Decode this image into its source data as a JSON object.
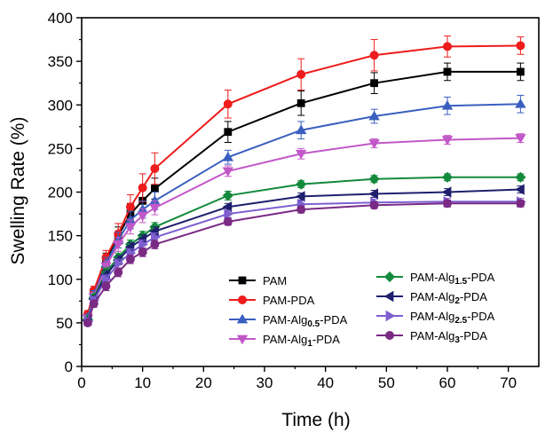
{
  "chart_data": {
    "type": "line",
    "xlabel": "Time (h)",
    "ylabel": "Swelling Rate (%)",
    "xlim": [
      0,
      75
    ],
    "ylim": [
      0,
      400
    ],
    "xticks": [
      0,
      10,
      20,
      30,
      40,
      50,
      60,
      70
    ],
    "yticks": [
      0,
      50,
      100,
      150,
      200,
      250,
      300,
      350,
      400
    ],
    "x": [
      1,
      2,
      4,
      6,
      8,
      10,
      12,
      24,
      36,
      48,
      60,
      72
    ],
    "error_bars": true,
    "legend_position": "bottom-right, two columns",
    "series": [
      {
        "name": "PAM",
        "name_parts": [
          {
            "t": "PAM",
            "sub": false
          }
        ],
        "color": "#000000",
        "marker": "square",
        "values": [
          58,
          85,
          122,
          150,
          175,
          190,
          204,
          269,
          302,
          325,
          338,
          338
        ],
        "errors": [
          4,
          5,
          8,
          10,
          12,
          12,
          12,
          12,
          14,
          12,
          10,
          10
        ]
      },
      {
        "name": "PAM-PDA",
        "name_parts": [
          {
            "t": "PAM-PDA",
            "sub": false
          }
        ],
        "color": "#ee1c1c",
        "marker": "circle",
        "values": [
          60,
          87,
          125,
          152,
          183,
          205,
          227,
          301,
          335,
          357,
          367,
          368
        ],
        "errors": [
          4,
          5,
          8,
          12,
          14,
          16,
          18,
          16,
          18,
          18,
          12,
          10
        ]
      },
      {
        "name": "PAM-Alg0.5-PDA",
        "name_parts": [
          {
            "t": "PAM-Alg",
            "sub": false
          },
          {
            "t": "0.5",
            "sub": true
          },
          {
            "t": "-PDA",
            "sub": false
          }
        ],
        "color": "#3a5fbf",
        "marker": "triangle-up",
        "values": [
          56,
          82,
          118,
          145,
          168,
          180,
          190,
          240,
          271,
          287,
          299,
          301
        ],
        "errors": [
          4,
          5,
          7,
          9,
          10,
          10,
          10,
          8,
          10,
          8,
          10,
          10
        ]
      },
      {
        "name": "PAM-Alg1-PDA",
        "name_parts": [
          {
            "t": "PAM-Alg",
            "sub": false
          },
          {
            "t": "1",
            "sub": true
          },
          {
            "t": "-PDA",
            "sub": false
          }
        ],
        "color": "#c158c8",
        "marker": "triangle-down",
        "values": [
          55,
          80,
          115,
          140,
          160,
          173,
          182,
          224,
          244,
          256,
          260,
          262
        ],
        "errors": [
          4,
          5,
          6,
          8,
          8,
          8,
          8,
          6,
          6,
          5,
          5,
          5
        ]
      },
      {
        "name": "PAM-Alg1.5-PDA",
        "name_parts": [
          {
            "t": "PAM-Alg",
            "sub": false
          },
          {
            "t": "1.5",
            "sub": true
          },
          {
            "t": "-PDA",
            "sub": false
          }
        ],
        "color": "#138a3c",
        "marker": "diamond",
        "values": [
          54,
          79,
          108,
          125,
          140,
          150,
          160,
          196,
          209,
          215,
          217,
          217
        ],
        "errors": [
          3,
          4,
          5,
          5,
          5,
          5,
          5,
          5,
          4,
          4,
          4,
          4
        ]
      },
      {
        "name": "PAM-Alg2-PDA",
        "name_parts": [
          {
            "t": "PAM-Alg",
            "sub": false
          },
          {
            "t": "2",
            "sub": true
          },
          {
            "t": "-PDA",
            "sub": false
          }
        ],
        "color": "#1f1f6e",
        "marker": "triangle-left",
        "values": [
          53,
          77,
          105,
          122,
          137,
          146,
          155,
          183,
          195,
          198,
          200,
          203
        ],
        "errors": [
          3,
          4,
          5,
          5,
          5,
          5,
          5,
          4,
          4,
          4,
          4,
          4
        ]
      },
      {
        "name": "PAM-Alg2.5-PDA",
        "name_parts": [
          {
            "t": "PAM-Alg",
            "sub": false
          },
          {
            "t": "2.5",
            "sub": true
          },
          {
            "t": "-PDA",
            "sub": false
          }
        ],
        "color": "#7d5fd0",
        "marker": "triangle-right",
        "values": [
          52,
          76,
          100,
          118,
          130,
          140,
          148,
          175,
          186,
          188,
          189,
          189
        ],
        "errors": [
          3,
          4,
          5,
          5,
          5,
          5,
          5,
          4,
          4,
          4,
          4,
          4
        ]
      },
      {
        "name": "PAM-Alg3-PDA",
        "name_parts": [
          {
            "t": "PAM-Alg",
            "sub": false
          },
          {
            "t": "3",
            "sub": true
          },
          {
            "t": "-PDA",
            "sub": false
          }
        ],
        "color": "#7a2a84",
        "marker": "circle",
        "values": [
          50,
          72,
          92,
          108,
          123,
          131,
          140,
          166,
          180,
          185,
          187,
          187
        ],
        "errors": [
          3,
          4,
          5,
          5,
          5,
          5,
          5,
          4,
          4,
          4,
          4,
          4
        ]
      }
    ]
  }
}
